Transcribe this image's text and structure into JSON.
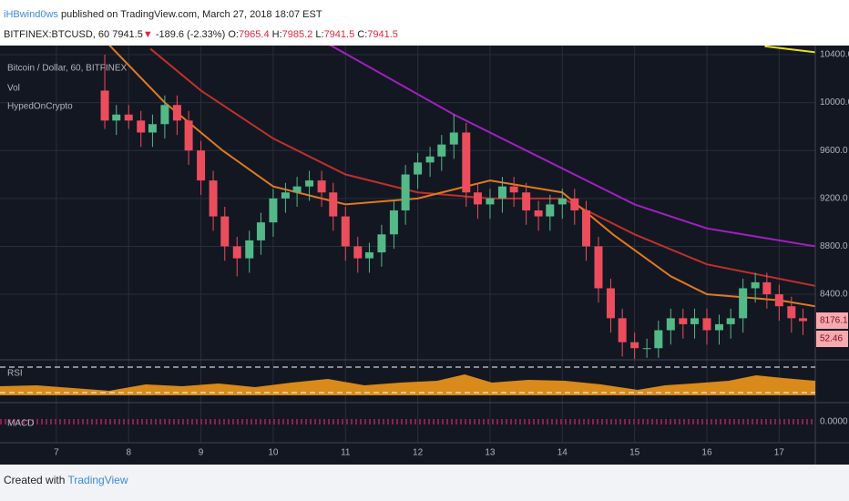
{
  "header": {
    "user": "iHBwind0ws",
    "published": "published on TradingView.com, March 27, 2018 18:07 EST",
    "symbol": "BITFINEX:BTCUSD, 60",
    "last": "7941.5",
    "arrow": "▼",
    "change": "-189.6 (-2.33%)",
    "ohlc": [
      {
        "label": "O:",
        "value": "7965.4"
      },
      {
        "label": "H:",
        "value": "7985.2"
      },
      {
        "label": "L:",
        "value": "7941.5"
      },
      {
        "label": "C:",
        "value": "7941.5"
      }
    ]
  },
  "chart_data": {
    "type": "candlestick",
    "legend": [
      "Bitcoin / Dollar, 60, BITFINEX",
      "Vol",
      "HypedOnCrypto"
    ],
    "panes": [
      "RSI",
      "MACD"
    ],
    "price_badges": [
      "8176.1",
      "52.46"
    ],
    "macd_label": "0.0000",
    "up_color": "#53b987",
    "down_color": "#eb4d5c",
    "grid": true,
    "xlim": [
      6.22,
      17.5
    ],
    "xticks": [
      7,
      8,
      9,
      10,
      11,
      12,
      13,
      14,
      15,
      16,
      17
    ],
    "ylim": [
      7853,
      10476
    ],
    "yticks": [
      {
        "value": 8400,
        "label": "8400.0"
      },
      {
        "value": 8800,
        "label": "8800.0"
      },
      {
        "value": 9200,
        "label": "9200.0"
      },
      {
        "value": 9600,
        "label": "9600.0"
      },
      {
        "value": 10000,
        "label": "10000.0"
      },
      {
        "value": 10400,
        "label": "10400.0"
      }
    ],
    "x": [
      7.67,
      7.83,
      8,
      8.17,
      8.33,
      8.5,
      8.67,
      8.83,
      9,
      9.17,
      9.33,
      9.5,
      9.67,
      9.83,
      10,
      10.17,
      10.33,
      10.5,
      10.67,
      10.83,
      11,
      11.17,
      11.33,
      11.5,
      11.67,
      11.83,
      12,
      12.17,
      12.33,
      12.5,
      12.67,
      12.83,
      13,
      13.17,
      13.33,
      13.5,
      13.67,
      13.83,
      14,
      14.17,
      14.33,
      14.5,
      14.67,
      14.83,
      15,
      15.17,
      15.33,
      15.5,
      15.67,
      15.83,
      16,
      16.17,
      16.33,
      16.5,
      16.67,
      16.83,
      17,
      17.17,
      17.33
    ],
    "open": [
      10100,
      9850,
      9900,
      9850,
      9750,
      9820,
      9980,
      9850,
      9600,
      9350,
      9050,
      8800,
      8700,
      8850,
      9000,
      9200,
      9250,
      9300,
      9350,
      9250,
      9050,
      8800,
      8700,
      8750,
      8900,
      9100,
      9400,
      9500,
      9550,
      9650,
      9750,
      9250,
      9150,
      9200,
      9300,
      9250,
      9100,
      9050,
      9150,
      9200,
      9100,
      8800,
      8450,
      8200,
      8000,
      7950,
      7950,
      8100,
      8200,
      8150,
      8200,
      8100,
      8150,
      8200,
      8450,
      8500,
      8400,
      8300,
      8200
    ],
    "high": [
      10400,
      9980,
      9980,
      9930,
      9900,
      10060,
      10060,
      9930,
      9680,
      9430,
      9130,
      8880,
      8930,
      9080,
      9280,
      9330,
      9380,
      9430,
      9430,
      9330,
      9130,
      8880,
      8830,
      8980,
      9180,
      9480,
      9580,
      9630,
      9730,
      9900,
      9830,
      9330,
      9280,
      9380,
      9380,
      9330,
      9180,
      9230,
      9280,
      9280,
      9180,
      8880,
      8530,
      8280,
      8080,
      8030,
      8180,
      8280,
      8280,
      8280,
      8280,
      8230,
      8280,
      8530,
      8580,
      8580,
      8480,
      8380,
      8280
    ],
    "low": [
      9780,
      9730,
      9780,
      9630,
      9630,
      9700,
      9730,
      9480,
      9230,
      8930,
      8680,
      8550,
      8580,
      8730,
      8880,
      9080,
      9130,
      9180,
      9130,
      8930,
      8680,
      8580,
      8580,
      8630,
      8780,
      8980,
      9280,
      9380,
      9430,
      9530,
      9130,
      9030,
      9030,
      9080,
      9130,
      8980,
      8930,
      8930,
      9030,
      8980,
      8680,
      8330,
      8080,
      7880,
      7860,
      7870,
      7870,
      7980,
      8030,
      8030,
      7980,
      7980,
      8030,
      8080,
      8330,
      8280,
      8180,
      8080,
      8060
    ],
    "close": [
      9850,
      9900,
      9850,
      9750,
      9820,
      9980,
      9850,
      9600,
      9350,
      9050,
      8800,
      8700,
      8850,
      9000,
      9200,
      9250,
      9300,
      9350,
      9250,
      9050,
      8800,
      8700,
      8750,
      8900,
      9100,
      9400,
      9500,
      9550,
      9650,
      9750,
      9250,
      9150,
      9200,
      9300,
      9250,
      9100,
      9050,
      9150,
      9200,
      9100,
      8800,
      8450,
      8200,
      8000,
      7950,
      7950,
      8100,
      8200,
      8150,
      8200,
      8100,
      8150,
      8200,
      8450,
      8500,
      8400,
      8300,
      8200,
      8176.1
    ],
    "moving_averages": [
      {
        "color": "#a020c0",
        "x": [
          9.5,
          10.8,
          12.5,
          14,
          15,
          16,
          17.5
        ],
        "values": [
          10750,
          10476,
          9900,
          9450,
          9150,
          8950,
          8800
        ]
      },
      {
        "color": "#c0302c",
        "x": [
          8.3,
          9,
          10,
          11,
          12,
          13,
          14,
          15,
          16,
          17.5
        ],
        "values": [
          10450,
          10100,
          9700,
          9400,
          9250,
          9200,
          9200,
          8900,
          8650,
          8470
        ]
      },
      {
        "color": "#e07a20",
        "x": [
          7.7,
          8.5,
          9.3,
          10,
          11,
          12,
          13,
          14,
          14.7,
          15.5,
          16,
          17,
          17.5
        ],
        "values": [
          10500,
          10000,
          9600,
          9300,
          9150,
          9200,
          9350,
          9250,
          8900,
          8550,
          8400,
          8350,
          8300
        ]
      },
      {
        "color": "#e8e020",
        "x": [
          16.8,
          17.5
        ],
        "values": [
          10470,
          10420
        ]
      }
    ]
  }
}
